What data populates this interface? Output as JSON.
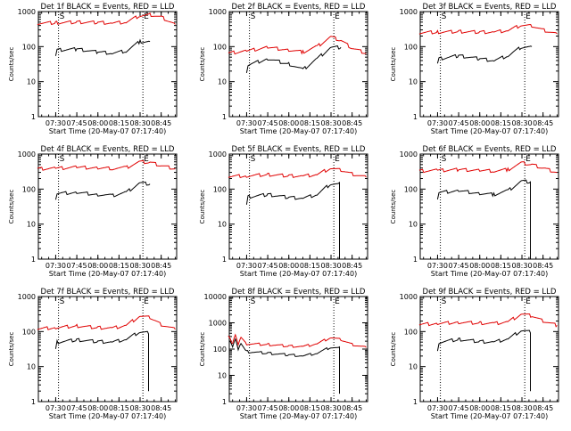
{
  "chart_data": [
    {
      "type": "line",
      "title": "Det 1f BLACK = Events, RED = LLD",
      "xlabel": "Start Time (20-May-07 07:17:40)",
      "ylabel": "Counts/sec",
      "ylim": [
        1,
        1000
      ],
      "y_scale": "log",
      "x_ticks": [
        "07:30",
        "07:45",
        "08:00",
        "08:15",
        "08:30",
        "08:45"
      ],
      "y_ticks": [
        "1",
        "10",
        "100",
        "1000"
      ],
      "markers": [
        {
          "time": "07:32",
          "label": "S"
        },
        {
          "time": "08:32",
          "label": "E"
        }
      ],
      "series": [
        {
          "color": "#e00000",
          "points": [
            [
              "07:17",
              470
            ],
            [
              "07:30",
              480
            ],
            [
              "07:45",
              500
            ],
            [
              "08:00",
              490
            ],
            [
              "08:10",
              470
            ],
            [
              "08:20",
              500
            ],
            [
              "08:30",
              780
            ],
            [
              "08:37",
              820
            ],
            [
              "08:45",
              700
            ],
            [
              "08:55",
              430
            ]
          ]
        },
        {
          "color": "#000000",
          "points": [
            [
              "07:30",
              50
            ],
            [
              "07:31",
              80
            ],
            [
              "07:45",
              85
            ],
            [
              "08:00",
              70
            ],
            [
              "08:10",
              65
            ],
            [
              "08:20",
              75
            ],
            [
              "08:30",
              140
            ],
            [
              "08:37",
              140
            ]
          ]
        }
      ]
    },
    {
      "type": "line",
      "title": "Det 2f BLACK = Events, RED = LLD",
      "xlabel": "Start Time (20-May-07 07:17:40)",
      "ylabel": "Counts/sec",
      "ylim": [
        1,
        1000
      ],
      "y_scale": "log",
      "x_ticks": [
        "07:30",
        "07:45",
        "08:00",
        "08:15",
        "08:30",
        "08:45"
      ],
      "y_ticks": [
        "1",
        "10",
        "100",
        "1000"
      ],
      "markers": [
        {
          "time": "07:32",
          "label": "S"
        },
        {
          "time": "08:32",
          "label": "E"
        }
      ],
      "series": [
        {
          "color": "#e00000",
          "points": [
            [
              "07:17",
              65
            ],
            [
              "07:30",
              75
            ],
            [
              "07:45",
              95
            ],
            [
              "08:00",
              80
            ],
            [
              "08:10",
              70
            ],
            [
              "08:20",
              100
            ],
            [
              "08:30",
              190
            ],
            [
              "08:37",
              150
            ],
            [
              "08:45",
              90
            ],
            [
              "08:55",
              65
            ]
          ]
        },
        {
          "color": "#000000",
          "points": [
            [
              "07:30",
              18
            ],
            [
              "07:31",
              30
            ],
            [
              "07:45",
              45
            ],
            [
              "08:00",
              32
            ],
            [
              "08:10",
              22
            ],
            [
              "08:20",
              45
            ],
            [
              "08:30",
              95
            ],
            [
              "08:37",
              95
            ]
          ]
        }
      ]
    },
    {
      "type": "line",
      "title": "Det 3f BLACK = Events, RED = LLD",
      "xlabel": "Start Time (20-May-07 07:17:40)",
      "ylabel": "Counts/sec",
      "ylim": [
        1,
        1000
      ],
      "y_scale": "log",
      "x_ticks": [
        "07:30",
        "07:45",
        "08:00",
        "08:15",
        "08:30",
        "08:45"
      ],
      "y_ticks": [
        "1",
        "10",
        "100",
        "1000"
      ],
      "markers": [
        {
          "time": "07:32",
          "label": "S"
        },
        {
          "time": "08:32",
          "label": "E"
        }
      ],
      "series": [
        {
          "color": "#e00000",
          "points": [
            [
              "07:17",
              250
            ],
            [
              "07:30",
              260
            ],
            [
              "07:45",
              270
            ],
            [
              "08:00",
              260
            ],
            [
              "08:10",
              260
            ],
            [
              "08:20",
              290
            ],
            [
              "08:30",
              420
            ],
            [
              "08:37",
              400
            ],
            [
              "08:45",
              300
            ],
            [
              "08:55",
              230
            ]
          ]
        },
        {
          "color": "#000000",
          "points": [
            [
              "07:30",
              30
            ],
            [
              "07:31",
              45
            ],
            [
              "07:45",
              55
            ],
            [
              "08:00",
              45
            ],
            [
              "08:10",
              40
            ],
            [
              "08:20",
              55
            ],
            [
              "08:30",
              100
            ],
            [
              "08:37",
              100
            ]
          ]
        }
      ]
    },
    {
      "type": "line",
      "title": "Det 4f BLACK = Events, RED = LLD",
      "xlabel": "Start Time (20-May-07 07:17:40)",
      "ylabel": "Counts/sec",
      "ylim": [
        1,
        1000
      ],
      "y_scale": "log",
      "x_ticks": [
        "07:30",
        "07:45",
        "08:00",
        "08:15",
        "08:30",
        "08:45"
      ],
      "y_ticks": [
        "1",
        "10",
        "100",
        "1000"
      ],
      "markers": [
        {
          "time": "07:32",
          "label": "S"
        },
        {
          "time": "08:32",
          "label": "E"
        }
      ],
      "series": [
        {
          "color": "#e00000",
          "points": [
            [
              "07:17",
              380
            ],
            [
              "07:30",
              390
            ],
            [
              "07:45",
              420
            ],
            [
              "08:00",
              400
            ],
            [
              "08:10",
              390
            ],
            [
              "08:20",
              410
            ],
            [
              "08:30",
              600
            ],
            [
              "08:37",
              580
            ],
            [
              "08:45",
              470
            ],
            [
              "08:55",
              380
            ]
          ]
        },
        {
          "color": "#000000",
          "points": [
            [
              "07:30",
              50
            ],
            [
              "07:31",
              75
            ],
            [
              "07:45",
              80
            ],
            [
              "08:00",
              70
            ],
            [
              "08:10",
              65
            ],
            [
              "08:20",
              80
            ],
            [
              "08:30",
              150
            ],
            [
              "08:37",
              140
            ]
          ]
        }
      ]
    },
    {
      "type": "line",
      "title": "Det 5f BLACK = Events, RED = LLD",
      "xlabel": "Start Time (20-May-07 07:17:40)",
      "ylabel": "Counts/sec",
      "ylim": [
        1,
        1000
      ],
      "y_scale": "log",
      "x_ticks": [
        "07:30",
        "07:45",
        "08:00",
        "08:15",
        "08:30",
        "08:45"
      ],
      "y_ticks": [
        "1",
        "10",
        "100",
        "1000"
      ],
      "markers": [
        {
          "time": "07:32",
          "label": "S"
        },
        {
          "time": "08:32",
          "label": "E"
        }
      ],
      "series": [
        {
          "color": "#e00000",
          "points": [
            [
              "07:17",
              230
            ],
            [
              "07:30",
              240
            ],
            [
              "07:45",
              260
            ],
            [
              "08:00",
              240
            ],
            [
              "08:10",
              235
            ],
            [
              "08:20",
              260
            ],
            [
              "08:30",
              400
            ],
            [
              "08:37",
              350
            ],
            [
              "08:45",
              270
            ],
            [
              "08:55",
              220
            ]
          ]
        },
        {
          "color": "#000000",
          "points": [
            [
              "07:30",
              40
            ],
            [
              "07:31",
              60
            ],
            [
              "07:45",
              70
            ],
            [
              "08:00",
              58
            ],
            [
              "08:10",
              55
            ],
            [
              "08:20",
              70
            ],
            [
              "08:30",
              145
            ],
            [
              "08:36",
              140
            ],
            [
              "08:36",
              1
            ]
          ]
        }
      ]
    },
    {
      "type": "line",
      "title": "Det 6f BLACK = Events, RED = LLD",
      "xlabel": "Start Time (20-May-07 07:17:40)",
      "ylabel": "Counts/sec",
      "ylim": [
        1,
        1000
      ],
      "y_scale": "log",
      "x_ticks": [
        "07:30",
        "07:45",
        "08:00",
        "08:15",
        "08:30",
        "08:45"
      ],
      "y_ticks": [
        "1",
        "10",
        "100",
        "1000"
      ],
      "markers": [
        {
          "time": "07:32",
          "label": "S"
        },
        {
          "time": "08:32",
          "label": "E"
        }
      ],
      "series": [
        {
          "color": "#e00000",
          "points": [
            [
              "07:17",
              330
            ],
            [
              "07:30",
              340
            ],
            [
              "07:45",
              360
            ],
            [
              "08:00",
              340
            ],
            [
              "08:10",
              330
            ],
            [
              "08:20",
              360
            ],
            [
              "08:30",
              560
            ],
            [
              "08:37",
              500
            ],
            [
              "08:45",
              400
            ],
            [
              "08:55",
              300
            ]
          ]
        },
        {
          "color": "#000000",
          "points": [
            [
              "07:30",
              50
            ],
            [
              "07:31",
              80
            ],
            [
              "07:45",
              90
            ],
            [
              "08:00",
              75
            ],
            [
              "08:10",
              70
            ],
            [
              "08:20",
              90
            ],
            [
              "08:30",
              170
            ],
            [
              "08:36",
              160
            ],
            [
              "08:36",
              1
            ]
          ]
        }
      ]
    },
    {
      "type": "line",
      "title": "Det 7f BLACK = Events, RED = LLD",
      "xlabel": "Start Time (20-May-07 07:17:40)",
      "ylabel": "Counts/sec",
      "ylim": [
        1,
        1000
      ],
      "y_scale": "log",
      "x_ticks": [
        "07:30",
        "07:45",
        "08:00",
        "08:15",
        "08:30",
        "08:45"
      ],
      "y_ticks": [
        "1",
        "10",
        "100",
        "1000"
      ],
      "markers": [
        {
          "time": "07:32",
          "label": "S"
        },
        {
          "time": "08:32",
          "label": "E"
        }
      ],
      "series": [
        {
          "color": "#e00000",
          "points": [
            [
              "07:17",
              120
            ],
            [
              "07:30",
              130
            ],
            [
              "07:45",
              145
            ],
            [
              "08:00",
              130
            ],
            [
              "08:10",
              125
            ],
            [
              "08:20",
              150
            ],
            [
              "08:30",
              280
            ],
            [
              "08:37",
              250
            ],
            [
              "08:45",
              160
            ],
            [
              "08:55",
              115
            ]
          ]
        },
        {
          "color": "#000000",
          "points": [
            [
              "07:30",
              35
            ],
            [
              "07:31",
              50
            ],
            [
              "07:45",
              58
            ],
            [
              "08:00",
              52
            ],
            [
              "08:10",
              50
            ],
            [
              "08:20",
              60
            ],
            [
              "08:30",
              100
            ],
            [
              "08:36",
              95
            ],
            [
              "08:36",
              2
            ]
          ]
        }
      ]
    },
    {
      "type": "line",
      "title": "Det 8f BLACK = Events, RED = LLD",
      "xlabel": "Start Time (20-May-07 07:17:40)",
      "ylabel": "Counts/sec",
      "ylim": [
        1,
        10000
      ],
      "y_scale": "log",
      "x_ticks": [
        "07:30",
        "07:45",
        "08:00",
        "08:15",
        "08:30",
        "08:45"
      ],
      "y_ticks": [
        "1",
        "10",
        "100",
        "1000",
        "10000"
      ],
      "markers": [
        {
          "time": "07:32",
          "label": "S"
        },
        {
          "time": "08:32",
          "label": "E"
        }
      ],
      "series": [
        {
          "color": "#e00000",
          "points": [
            [
              "07:17",
              300
            ],
            [
              "07:20",
              160
            ],
            [
              "07:22",
              350
            ],
            [
              "07:24",
              150
            ],
            [
              "07:26",
              300
            ],
            [
              "07:30",
              160
            ],
            [
              "07:45",
              150
            ],
            [
              "08:00",
              130
            ],
            [
              "08:10",
              125
            ],
            [
              "08:20",
              160
            ],
            [
              "08:30",
              280
            ],
            [
              "08:37",
              230
            ],
            [
              "08:45",
              150
            ],
            [
              "08:55",
              115
            ]
          ]
        },
        {
          "color": "#000000",
          "points": [
            [
              "07:18",
              200
            ],
            [
              "07:20",
              120
            ],
            [
              "07:22",
              250
            ],
            [
              "07:24",
              100
            ],
            [
              "07:26",
              180
            ],
            [
              "07:30",
              80
            ],
            [
              "07:45",
              70
            ],
            [
              "08:00",
              60
            ],
            [
              "08:10",
              55
            ],
            [
              "08:20",
              70
            ],
            [
              "08:30",
              120
            ],
            [
              "08:36",
              110
            ],
            [
              "08:36",
              2
            ]
          ]
        }
      ]
    },
    {
      "type": "line",
      "title": "Det 9f BLACK = Events, RED = LLD",
      "xlabel": "Start Time (20-May-07 07:17:40)",
      "ylabel": "Counts/sec",
      "ylim": [
        1,
        1000
      ],
      "y_scale": "log",
      "x_ticks": [
        "07:30",
        "07:45",
        "08:00",
        "08:15",
        "08:30",
        "08:45"
      ],
      "y_ticks": [
        "1",
        "10",
        "100",
        "1000"
      ],
      "markers": [
        {
          "time": "07:32",
          "label": "S"
        },
        {
          "time": "08:32",
          "label": "E"
        }
      ],
      "series": [
        {
          "color": "#e00000",
          "points": [
            [
              "07:17",
              160
            ],
            [
              "07:30",
              170
            ],
            [
              "07:45",
              185
            ],
            [
              "08:00",
              175
            ],
            [
              "08:10",
              170
            ],
            [
              "08:20",
              190
            ],
            [
              "08:30",
              320
            ],
            [
              "08:37",
              280
            ],
            [
              "08:45",
              200
            ],
            [
              "08:55",
              150
            ]
          ]
        },
        {
          "color": "#000000",
          "points": [
            [
              "07:30",
              30
            ],
            [
              "07:31",
              50
            ],
            [
              "07:45",
              60
            ],
            [
              "08:00",
              52
            ],
            [
              "08:10",
              50
            ],
            [
              "08:20",
              62
            ],
            [
              "08:30",
              110
            ],
            [
              "08:36",
              100
            ],
            [
              "08:36",
              2
            ]
          ]
        }
      ]
    }
  ]
}
